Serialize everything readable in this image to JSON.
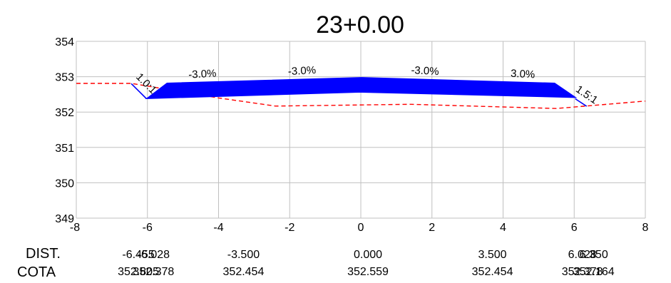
{
  "chart_data": {
    "type": "line",
    "title": "23+0.00",
    "xlabel": "",
    "ylabel": "",
    "xlim": [
      -8,
      8
    ],
    "ylim": [
      349,
      354
    ],
    "x_ticks": [
      "-8",
      "-6",
      "-4",
      "-2",
      "0",
      "2",
      "4",
      "6",
      "8"
    ],
    "y_ticks": [
      "349",
      "350",
      "351",
      "352",
      "353",
      "354"
    ],
    "grid": true,
    "colors": {
      "road": "#0000ff",
      "terrain": "#ff0000",
      "grid": "#c0c0c0"
    },
    "series": [
      {
        "style": "dashed",
        "x": [
          -8,
          -6.45,
          -4.0,
          -2.4,
          1.4,
          5.5,
          8
        ],
        "y": [
          352.81,
          352.81,
          352.4,
          352.17,
          352.22,
          352.1,
          352.31
        ]
      },
      {
        "style": "filled",
        "x": [
          -5.45,
          0,
          5.45,
          6.05,
          0,
          -6.03
        ],
        "y": [
          352.82,
          352.98,
          352.82,
          352.41,
          352.56,
          352.38
        ]
      },
      {
        "style": "solid",
        "x": [
          -6.455,
          -6.028
        ],
        "y": [
          352.805,
          352.378
        ]
      },
      {
        "style": "solid",
        "x": [
          6.028,
          6.35
        ],
        "y": [
          352.378,
          352.164
        ]
      }
    ],
    "annotations": [
      {
        "text": "1.0:1",
        "x": -6.1,
        "y": 352.74,
        "angle": 45
      },
      {
        "text": "-3.0%",
        "x": -4.45,
        "y": 352.98,
        "angle": -3
      },
      {
        "text": "-3.0%",
        "x": -1.65,
        "y": 353.07,
        "angle": -3
      },
      {
        "text": "-3.0%",
        "x": 1.8,
        "y": 353.07,
        "angle": 3
      },
      {
        "text": "3.0%",
        "x": 4.55,
        "y": 352.98,
        "angle": 3
      },
      {
        "text": "1.5:1",
        "x": 6.3,
        "y": 352.41,
        "angle": 34
      }
    ],
    "table": {
      "dist_label": "DIST.",
      "cota_label": "COTA",
      "columns": [
        {
          "x": -6.455,
          "dist": "-6.455",
          "cota": "352.805"
        },
        {
          "x": -6.028,
          "dist": "-6.028",
          "cota": "352.378"
        },
        {
          "x": -3.5,
          "dist": "-3.500",
          "cota": "352.454"
        },
        {
          "x": 0,
          "dist": "0.000",
          "cota": "352.559"
        },
        {
          "x": 3.5,
          "dist": "3.500",
          "cota": "352.454"
        },
        {
          "x": 6.028,
          "dist": "6.028",
          "cota": "352.378"
        },
        {
          "x": 6.35,
          "dist": "6.350",
          "cota": "352.164"
        }
      ]
    }
  }
}
